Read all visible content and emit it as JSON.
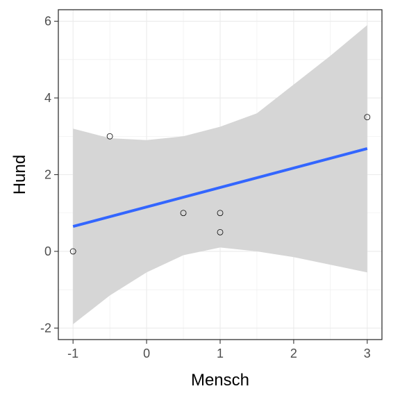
{
  "chart_data": {
    "type": "scatter",
    "title": "",
    "xlabel": "Mensch",
    "ylabel": "Hund",
    "xlim": [
      -1.2,
      3.2
    ],
    "ylim": [
      -2.3,
      6.3
    ],
    "x_ticks": [
      -1,
      0,
      1,
      2,
      3
    ],
    "y_ticks": [
      -2,
      0,
      2,
      4,
      6
    ],
    "grid": true,
    "legend": "none",
    "points": [
      {
        "x": -1,
        "y": 0
      },
      {
        "x": -0.5,
        "y": 3
      },
      {
        "x": 0.5,
        "y": 1
      },
      {
        "x": 1,
        "y": 1
      },
      {
        "x": 1,
        "y": 0.5
      },
      {
        "x": 3,
        "y": 3.5
      }
    ],
    "fit": {
      "method": "linear regression",
      "x": [
        -1,
        3
      ],
      "y": [
        0.65,
        2.68
      ],
      "confidence_band": [
        {
          "x": -1,
          "lower": -1.9,
          "upper": 3.2
        },
        {
          "x": -0.5,
          "lower": -1.15,
          "upper": 2.95
        },
        {
          "x": 0,
          "lower": -0.55,
          "upper": 2.9
        },
        {
          "x": 0.5,
          "lower": -0.1,
          "upper": 3.0
        },
        {
          "x": 1,
          "lower": 0.1,
          "upper": 3.25
        },
        {
          "x": 1.5,
          "lower": 0.0,
          "upper": 3.6
        },
        {
          "x": 2,
          "lower": -0.15,
          "upper": 4.35
        },
        {
          "x": 2.5,
          "lower": -0.35,
          "upper": 5.1
        },
        {
          "x": 3,
          "lower": -0.55,
          "upper": 5.9
        }
      ]
    },
    "colors": {
      "points_stroke": "#000000",
      "fit_line": "#3366ff",
      "band": "#d6d6d6",
      "grid": "#ebebeb",
      "panel_border": "#333333"
    }
  }
}
